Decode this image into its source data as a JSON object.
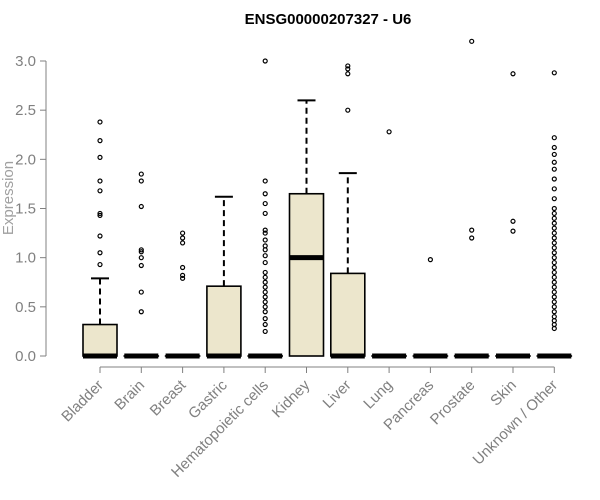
{
  "chart_data": {
    "type": "box",
    "title": "ENSG00000207327 - U6",
    "xlabel": "",
    "ylabel": "Expression",
    "ylim": [
      0,
      3.0
    ],
    "yticks": [
      "0.0",
      "0.5",
      "1.0",
      "1.5",
      "2.0",
      "2.5",
      "3.0"
    ],
    "grid": false,
    "legend": "none",
    "box_fill": "#ece6cc",
    "categories": [
      "Bladder",
      "Brain",
      "Breast",
      "Gastric",
      "Hematopoietic cells",
      "Kidney",
      "Liver",
      "Lung",
      "Pancreas",
      "Prostate",
      "Skin",
      "Unknown / Other"
    ],
    "boxes": [
      {
        "q1": 0,
        "median": 0,
        "q3": 0.32,
        "whisker_low": 0,
        "whisker_high": 0.79,
        "outliers": [
          0.93,
          1.05,
          1.22,
          1.43,
          1.45,
          1.68,
          1.78,
          2.02,
          2.19,
          2.38
        ]
      },
      {
        "q1": 0,
        "median": 0,
        "q3": 0,
        "whisker_low": 0,
        "whisker_high": 0,
        "outliers": [
          0.45,
          0.65,
          0.92,
          1.0,
          1.06,
          1.08,
          1.52,
          1.78,
          1.85
        ]
      },
      {
        "q1": 0,
        "median": 0,
        "q3": 0,
        "whisker_low": 0,
        "whisker_high": 0,
        "outliers": [
          0.79,
          0.82,
          0.9,
          1.15,
          1.2,
          1.25
        ]
      },
      {
        "q1": 0,
        "median": 0,
        "q3": 0.71,
        "whisker_low": 0,
        "whisker_high": 1.62,
        "outliers": []
      },
      {
        "q1": 0,
        "median": 0,
        "q3": 0,
        "whisker_low": 0,
        "whisker_high": 0,
        "outliers": [
          0.25,
          0.32,
          0.38,
          0.45,
          0.5,
          0.55,
          0.6,
          0.65,
          0.7,
          0.75,
          0.8,
          0.85,
          0.95,
          1.02,
          1.08,
          1.12,
          1.18,
          1.25,
          1.28,
          1.45,
          1.55,
          1.65,
          1.78,
          3.0
        ]
      },
      {
        "q1": 0,
        "median": 1.0,
        "q3": 1.65,
        "whisker_low": 0,
        "whisker_high": 2.6,
        "outliers": []
      },
      {
        "q1": 0,
        "median": 0,
        "q3": 0.84,
        "whisker_low": 0,
        "whisker_high": 1.86,
        "outliers": [
          2.5,
          2.87,
          2.92,
          2.95
        ]
      },
      {
        "q1": 0,
        "median": 0,
        "q3": 0,
        "whisker_low": 0,
        "whisker_high": 0,
        "outliers": [
          2.28
        ]
      },
      {
        "q1": 0,
        "median": 0,
        "q3": 0,
        "whisker_low": 0,
        "whisker_high": 0,
        "outliers": [
          0.98
        ]
      },
      {
        "q1": 0,
        "median": 0,
        "q3": 0,
        "whisker_low": 0,
        "whisker_high": 0,
        "outliers": [
          1.2,
          1.28,
          3.2
        ]
      },
      {
        "q1": 0,
        "median": 0,
        "q3": 0,
        "whisker_low": 0,
        "whisker_high": 0,
        "outliers": [
          1.27,
          1.37,
          2.87
        ]
      },
      {
        "q1": 0,
        "median": 0,
        "q3": 0,
        "whisker_low": 0,
        "whisker_high": 0,
        "outliers": [
          0.28,
          0.32,
          0.36,
          0.4,
          0.45,
          0.5,
          0.55,
          0.6,
          0.65,
          0.7,
          0.75,
          0.8,
          0.85,
          0.9,
          0.95,
          1.0,
          1.05,
          1.1,
          1.15,
          1.2,
          1.25,
          1.3,
          1.35,
          1.4,
          1.45,
          1.5,
          1.6,
          1.7,
          1.8,
          1.9,
          1.97,
          2.05,
          2.12,
          2.22,
          2.88
        ]
      }
    ]
  }
}
